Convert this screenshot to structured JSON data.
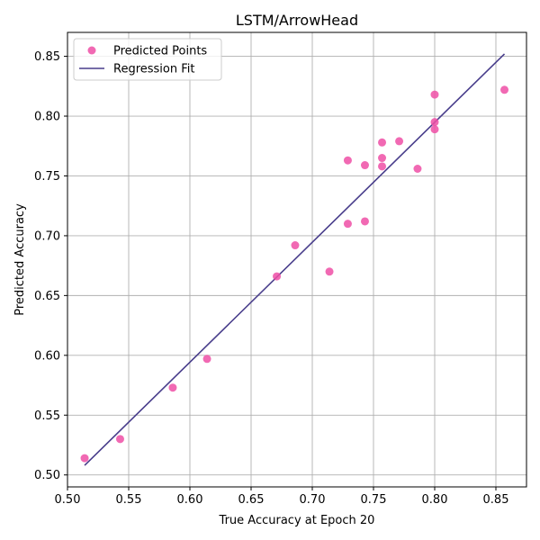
{
  "chart_data": {
    "type": "scatter",
    "title": "LSTM/ArrowHead",
    "xlabel": "True Accuracy at Epoch 20",
    "ylabel": "Predicted Accuracy",
    "xlim": [
      0.5,
      0.875
    ],
    "ylim": [
      0.49,
      0.87
    ],
    "xticks": [
      0.5,
      0.55,
      0.6,
      0.65,
      0.7,
      0.75,
      0.8,
      0.85
    ],
    "xtick_labels": [
      "0.50",
      "0.55",
      "0.60",
      "0.65",
      "0.70",
      "0.75",
      "0.80",
      "0.85"
    ],
    "yticks": [
      0.5,
      0.55,
      0.6,
      0.65,
      0.7,
      0.75,
      0.8,
      0.85
    ],
    "ytick_labels": [
      "0.50",
      "0.55",
      "0.60",
      "0.65",
      "0.70",
      "0.75",
      "0.80",
      "0.85"
    ],
    "grid": true,
    "legend_position": "top-left",
    "series": [
      {
        "name": "Predicted Points",
        "kind": "scatter",
        "color": "#ef4fa6",
        "points": [
          {
            "x": 0.514,
            "y": 0.514
          },
          {
            "x": 0.543,
            "y": 0.53
          },
          {
            "x": 0.586,
            "y": 0.573
          },
          {
            "x": 0.614,
            "y": 0.597
          },
          {
            "x": 0.671,
            "y": 0.666
          },
          {
            "x": 0.686,
            "y": 0.692
          },
          {
            "x": 0.714,
            "y": 0.67
          },
          {
            "x": 0.729,
            "y": 0.763
          },
          {
            "x": 0.729,
            "y": 0.71
          },
          {
            "x": 0.743,
            "y": 0.759
          },
          {
            "x": 0.743,
            "y": 0.712
          },
          {
            "x": 0.757,
            "y": 0.778
          },
          {
            "x": 0.757,
            "y": 0.765
          },
          {
            "x": 0.757,
            "y": 0.758
          },
          {
            "x": 0.771,
            "y": 0.779
          },
          {
            "x": 0.786,
            "y": 0.756
          },
          {
            "x": 0.8,
            "y": 0.818
          },
          {
            "x": 0.8,
            "y": 0.795
          },
          {
            "x": 0.8,
            "y": 0.789
          },
          {
            "x": 0.857,
            "y": 0.822
          }
        ]
      },
      {
        "name": "Regression Fit",
        "kind": "line",
        "color": "#483d8b",
        "points": [
          {
            "x": 0.514,
            "y": 0.508
          },
          {
            "x": 0.857,
            "y": 0.852
          }
        ]
      }
    ]
  }
}
